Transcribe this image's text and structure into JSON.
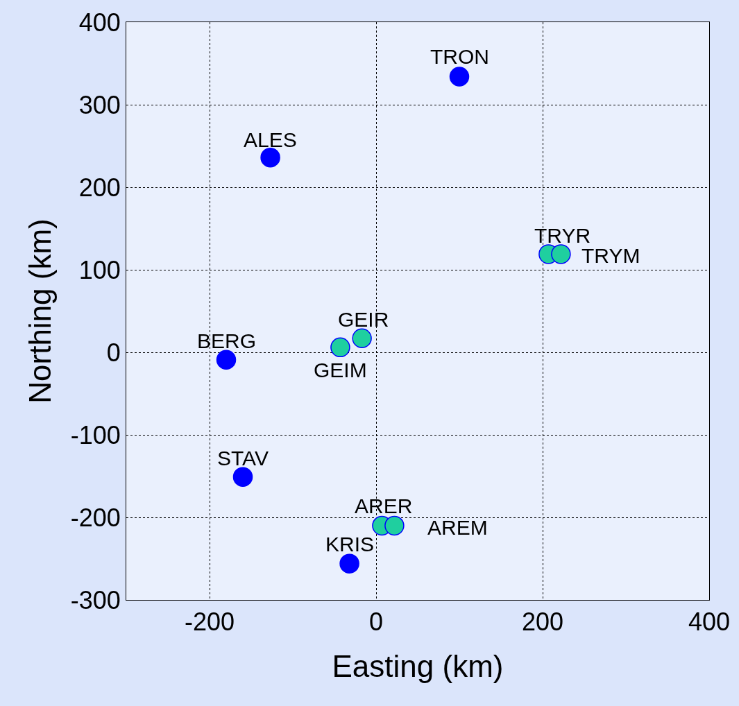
{
  "chart_data": {
    "type": "scatter",
    "xlabel": "Easting (km)",
    "ylabel": "Northing (km)",
    "xlim": [
      -300,
      400
    ],
    "ylim": [
      -300,
      400
    ],
    "xticks": [
      -200,
      0,
      200,
      400
    ],
    "yticks": [
      -300,
      -200,
      -100,
      0,
      100,
      200,
      300,
      400
    ],
    "grid": true,
    "legend": false,
    "marker": "circle",
    "series": [
      {
        "color": "#0000ff",
        "x": [
          100,
          -127,
          -180,
          -160,
          -32
        ],
        "values": [
          334,
          236,
          -9,
          -151,
          -256
        ]
      },
      {
        "color": "#1fcf9f",
        "x": [
          207,
          222,
          -17,
          -43,
          7,
          22
        ],
        "values": [
          119,
          119,
          17,
          6,
          -210,
          -210
        ]
      }
    ],
    "annotations": [
      {
        "text": "TRON",
        "x": 100,
        "y": 334
      },
      {
        "text": "ALES",
        "x": -127,
        "y": 236
      },
      {
        "text": "BERG",
        "x": -180,
        "y": -9
      },
      {
        "text": "STAV",
        "x": -160,
        "y": -151
      },
      {
        "text": "KRIS",
        "x": -32,
        "y": -256
      },
      {
        "text": "TRYR",
        "x": 207,
        "y": 119
      },
      {
        "text": "TRYM",
        "x": 222,
        "y": 119
      },
      {
        "text": "GEIR",
        "x": -17,
        "y": 17
      },
      {
        "text": "GEIM",
        "x": -43,
        "y": 6
      },
      {
        "text": "ARER",
        "x": 7,
        "y": -210
      },
      {
        "text": "AREM",
        "x": 22,
        "y": -210
      }
    ]
  }
}
